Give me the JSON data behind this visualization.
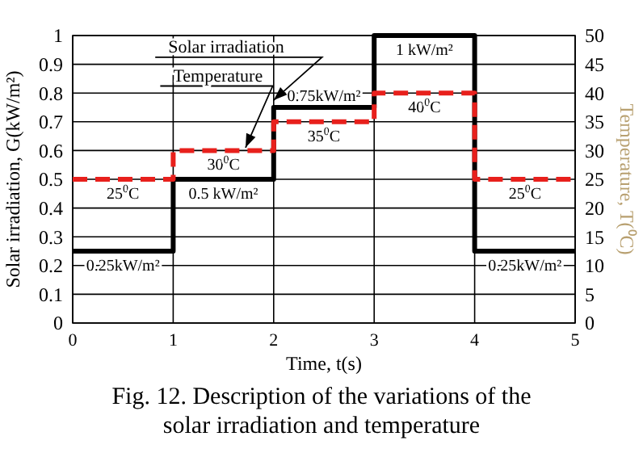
{
  "chart_data": {
    "type": "step",
    "xlabel": "Time, t(s)",
    "ylabel": "Solar irradiation, G(kW/m²)",
    "y2label": "Temperature, T(⁰C)",
    "x": [
      0,
      1,
      2,
      3,
      4,
      5
    ],
    "series": [
      {
        "name": "Solar irradiation",
        "color": "#000000",
        "values": [
          0.25,
          0.5,
          0.75,
          1,
          0.25,
          0.25
        ],
        "line_style": "solid"
      },
      {
        "name": "Temperature",
        "color": "#e8201c",
        "values": [
          25,
          30,
          35,
          40,
          25,
          25
        ],
        "axis": "y2",
        "line_style": "dashed"
      }
    ],
    "xlim": [
      0,
      5
    ],
    "xticks": [
      0,
      1,
      2,
      3,
      4,
      5
    ],
    "ylim": [
      0,
      1
    ],
    "yticks": [
      0,
      0.1,
      0.2,
      0.3,
      0.4,
      0.5,
      0.6,
      0.7,
      0.8,
      0.9,
      1
    ],
    "y2lim": [
      0,
      50
    ],
    "y2ticks": [
      0,
      5,
      10,
      15,
      20,
      25,
      30,
      35,
      40,
      45,
      50
    ],
    "grid": true,
    "annotations": [
      {
        "text": "0.25kW/m²",
        "x": 0.5,
        "y": 0.25
      },
      {
        "text": "0.5 kW/m²",
        "x": 1.5,
        "y": 0.5
      },
      {
        "text": "0.75kW/m²",
        "x": 2.5,
        "y": 0.75
      },
      {
        "text": "1 kW/m²",
        "x": 3.5,
        "y": 1
      },
      {
        "text": "0.25kW/m²",
        "x": 4.5,
        "y": 0.25
      },
      {
        "text": "25$^{0}$C",
        "x": 0.5,
        "y": 0.5
      },
      {
        "text": "30$^{0}$C",
        "x": 1.5,
        "y": 0.6
      },
      {
        "text": "35$^{0}$C",
        "x": 2.5,
        "y": 0.7
      },
      {
        "text": "40$^{0}$C",
        "x": 3.5,
        "y": 0.8
      },
      {
        "text": "25$^{0}$C",
        "x": 4.5,
        "y": 0.5
      },
      "Fig. 12. Description of the variations of the solar irradiation and temperature"
    ]
  }
}
